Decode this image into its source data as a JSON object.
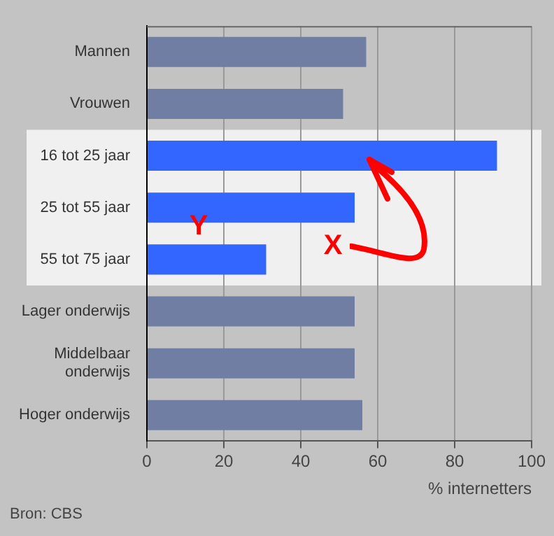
{
  "chart_data": {
    "type": "bar",
    "orientation": "horizontal",
    "categories": [
      "Mannen",
      "Vrouwen",
      "16 tot 25 jaar",
      "25 tot 55 jaar",
      "55 tot 75 jaar",
      "Lager onderwijs",
      "Middelbaar onderwijs",
      "Hoger onderwijs"
    ],
    "values": [
      57,
      51,
      91,
      54,
      31,
      54,
      54,
      56
    ],
    "colors": [
      "#717ea3",
      "#717ea3",
      "#3366ff",
      "#3366ff",
      "#3366ff",
      "#717ea3",
      "#717ea3",
      "#717ea3"
    ],
    "xlim": [
      0,
      100
    ],
    "xticks": [
      0,
      20,
      40,
      60,
      80,
      100
    ],
    "xlabel": "% internetters",
    "grid": "x",
    "legend": false,
    "bands": [
      {
        "axis": "y",
        "from": "16 tot 25 jaar",
        "to": "55 tot 75 jaar",
        "color": "#f0f0f0"
      }
    ],
    "annotations": [
      "Y",
      "X",
      "Bron: CBS"
    ]
  }
}
